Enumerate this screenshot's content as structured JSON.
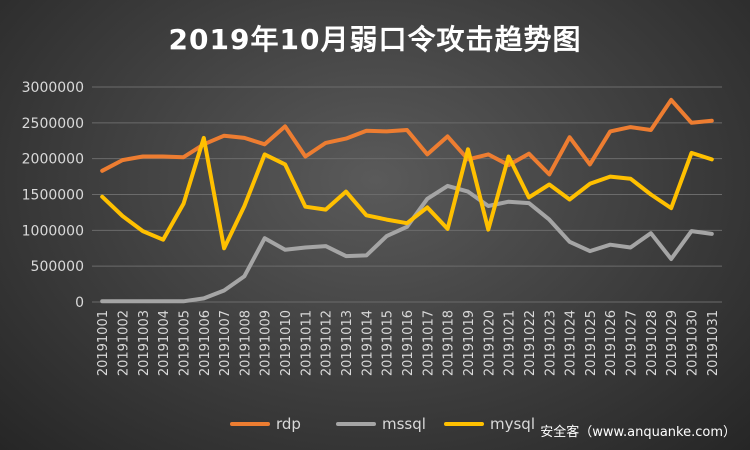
{
  "chart_data": {
    "type": "line",
    "title": "2019年10月弱口令攻击趋势图",
    "categories": [
      "20191001",
      "20191002",
      "20191003",
      "20191004",
      "20191005",
      "20191006",
      "20191007",
      "20191008",
      "20191009",
      "20191010",
      "20191011",
      "20191012",
      "20191013",
      "20191014",
      "20191015",
      "20191016",
      "20191017",
      "20191018",
      "20191019",
      "20191020",
      "20191021",
      "20191022",
      "20191023",
      "20191024",
      "20191025",
      "20191026",
      "20191027",
      "20191028",
      "20191029",
      "20191030",
      "20191031"
    ],
    "series": [
      {
        "name": "rdp",
        "color": "#ed7d31",
        "values": [
          1830000,
          1980000,
          2030000,
          2030000,
          2020000,
          2200000,
          2320000,
          2290000,
          2200000,
          2450000,
          2030000,
          2220000,
          2280000,
          2390000,
          2380000,
          2400000,
          2060000,
          2310000,
          1990000,
          2060000,
          1910000,
          2070000,
          1780000,
          2300000,
          1920000,
          2380000,
          2440000,
          2400000,
          2820000,
          2500000,
          2530000
        ]
      },
      {
        "name": "mssql",
        "color": "#a5a5a5",
        "values": [
          10000,
          10000,
          10000,
          10000,
          10000,
          50000,
          160000,
          360000,
          890000,
          730000,
          760000,
          780000,
          640000,
          650000,
          920000,
          1050000,
          1440000,
          1620000,
          1540000,
          1340000,
          1400000,
          1380000,
          1150000,
          840000,
          710000,
          800000,
          760000,
          960000,
          600000,
          990000,
          950000
        ]
      },
      {
        "name": "mysql",
        "color": "#ffc000",
        "values": [
          1470000,
          1200000,
          990000,
          870000,
          1370000,
          2290000,
          750000,
          1340000,
          2060000,
          1920000,
          1330000,
          1290000,
          1540000,
          1210000,
          1150000,
          1100000,
          1320000,
          1020000,
          2130000,
          1010000,
          2030000,
          1460000,
          1640000,
          1430000,
          1650000,
          1750000,
          1720000,
          1500000,
          1310000,
          2080000,
          1990000
        ]
      }
    ],
    "ylim": [
      0,
      3000000
    ],
    "yticks": [
      0,
      500000,
      1000000,
      1500000,
      2000000,
      2500000,
      3000000
    ],
    "grid": true,
    "legend_position": "bottom"
  },
  "watermark": "安全客（www.anquanke.com）"
}
